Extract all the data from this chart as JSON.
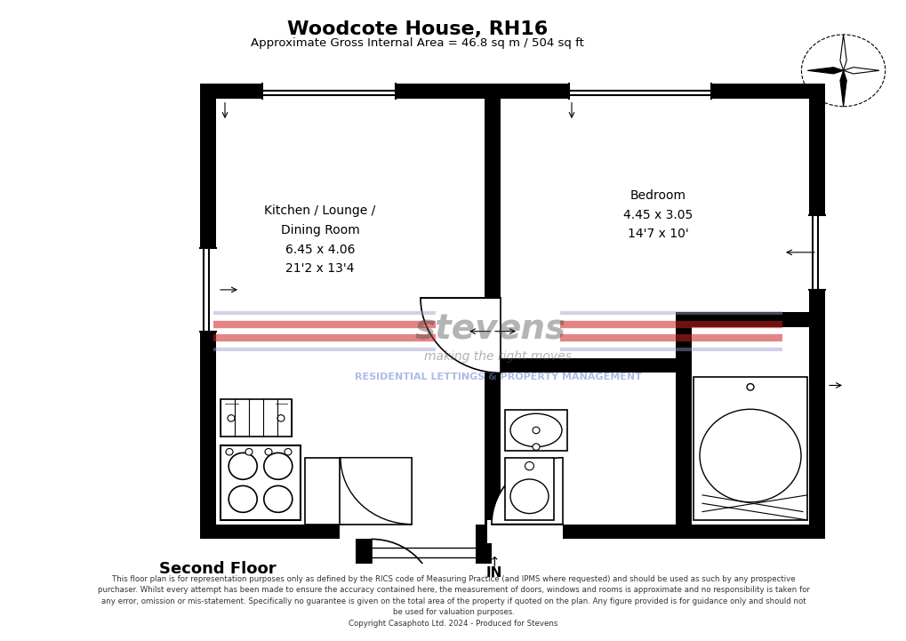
{
  "title": "Woodcote House, RH16",
  "subtitle": "Approximate Gross Internal Area = 46.8 sq m / 504 sq ft",
  "floor_label": "Second Floor",
  "north_label": "IN",
  "disclaimer": "This floor plan is for representation purposes only as defined by the RICS code of Measuring Practice (and IPMS where requested) and should be used as such by any prospective\npurchaser. Whilst every attempt has been made to ensure the accuracy contained here, the measurement of doors, windows and rooms is approximate and no responsibility is taken for\nany error, omission or mis-statement. Specifically no guarantee is given on the total area of the property if quoted on the plan. Any figure provided is for guidance only and should not\nbe used for valuation purposes.\nCopyright Casaphoto Ltd. 2024 - Produced for Stevens",
  "bg_color": "#ffffff",
  "room1_label": "Kitchen / Lounge /\nDining Room\n6.45 x 4.06\n21'2 x 13'4",
  "room2_label": "Bedroom\n4.45 x 3.05\n14'7 x 10'"
}
